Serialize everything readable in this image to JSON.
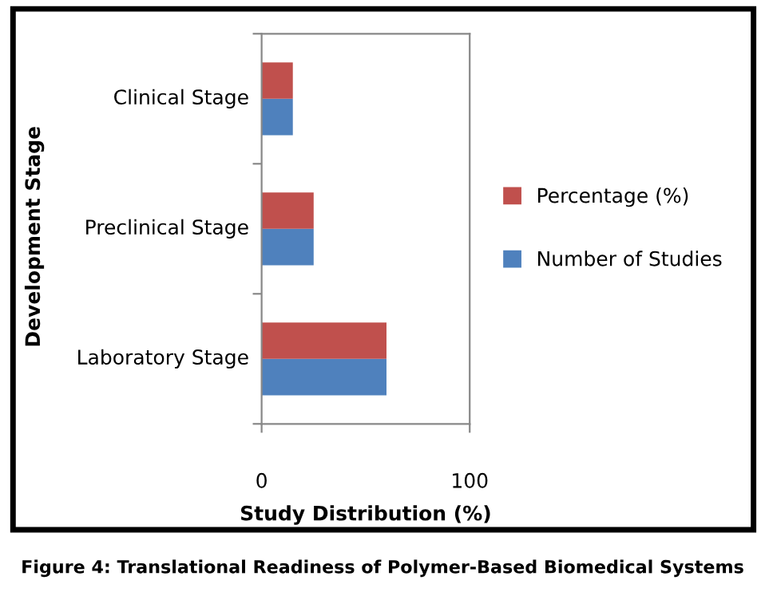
{
  "chart_data": {
    "type": "bar",
    "orientation": "horizontal",
    "categories": [
      "Clinical Stage",
      "Preclinical Stage",
      "Laboratory Stage"
    ],
    "series": [
      {
        "name": "Number of Studies",
        "color": "#4f81bd",
        "values": [
          15,
          25,
          60
        ]
      },
      {
        "name": "Percentage (%)",
        "color": "#c0504d",
        "values": [
          15,
          25,
          60
        ]
      }
    ],
    "xlabel": "Study Distribution (%)",
    "ylabel": "Development Stage",
    "xlim": [
      0,
      100
    ],
    "xticks": [
      0,
      100
    ],
    "grid": false,
    "legend": "right",
    "annotations": [
      "Figure 4: Translational Readiness of Polymer-Based Biomedical Systems"
    ]
  }
}
